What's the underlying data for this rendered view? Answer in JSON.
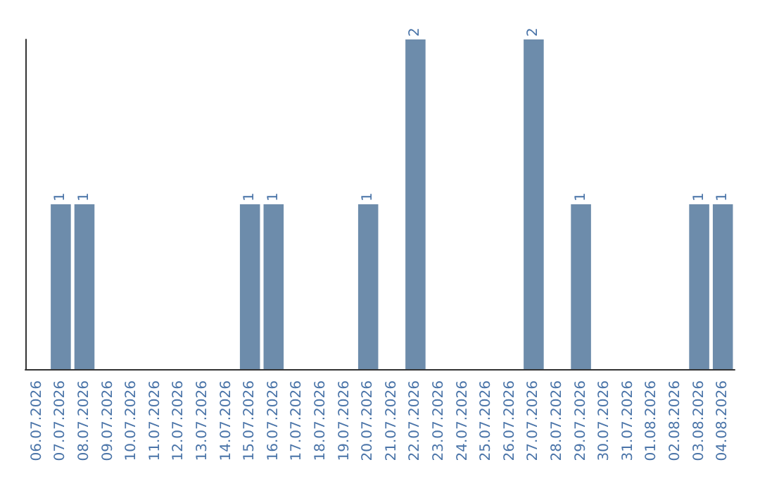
{
  "chart_data": {
    "type": "bar",
    "categories": [
      "06.07.2026",
      "07.07.2026",
      "08.07.2026",
      "09.07.2026",
      "10.07.2026",
      "11.07.2026",
      "12.07.2026",
      "13.07.2026",
      "14.07.2026",
      "15.07.2026",
      "16.07.2026",
      "17.07.2026",
      "18.07.2026",
      "19.07.2026",
      "20.07.2026",
      "21.07.2026",
      "22.07.2026",
      "23.07.2026",
      "24.07.2026",
      "25.07.2026",
      "26.07.2026",
      "27.07.2026",
      "28.07.2026",
      "29.07.2026",
      "30.07.2026",
      "31.07.2026",
      "01.08.2026",
      "02.08.2026",
      "03.08.2026",
      "04.08.2026"
    ],
    "values": [
      0,
      1,
      1,
      0,
      0,
      0,
      0,
      0,
      0,
      1,
      1,
      0,
      0,
      0,
      1,
      0,
      2,
      0,
      0,
      0,
      0,
      2,
      0,
      1,
      0,
      0,
      0,
      0,
      1,
      1
    ],
    "value_labels": [
      null,
      "1",
      "1",
      null,
      null,
      null,
      null,
      null,
      null,
      "1",
      "1",
      null,
      null,
      null,
      "1",
      null,
      "2",
      null,
      null,
      null,
      null,
      "2",
      null,
      "1",
      null,
      null,
      null,
      null,
      "1",
      "1"
    ],
    "color": "#6d8cab",
    "ylim": [
      0,
      2
    ],
    "tick_labels": "x",
    "grid": false
  }
}
